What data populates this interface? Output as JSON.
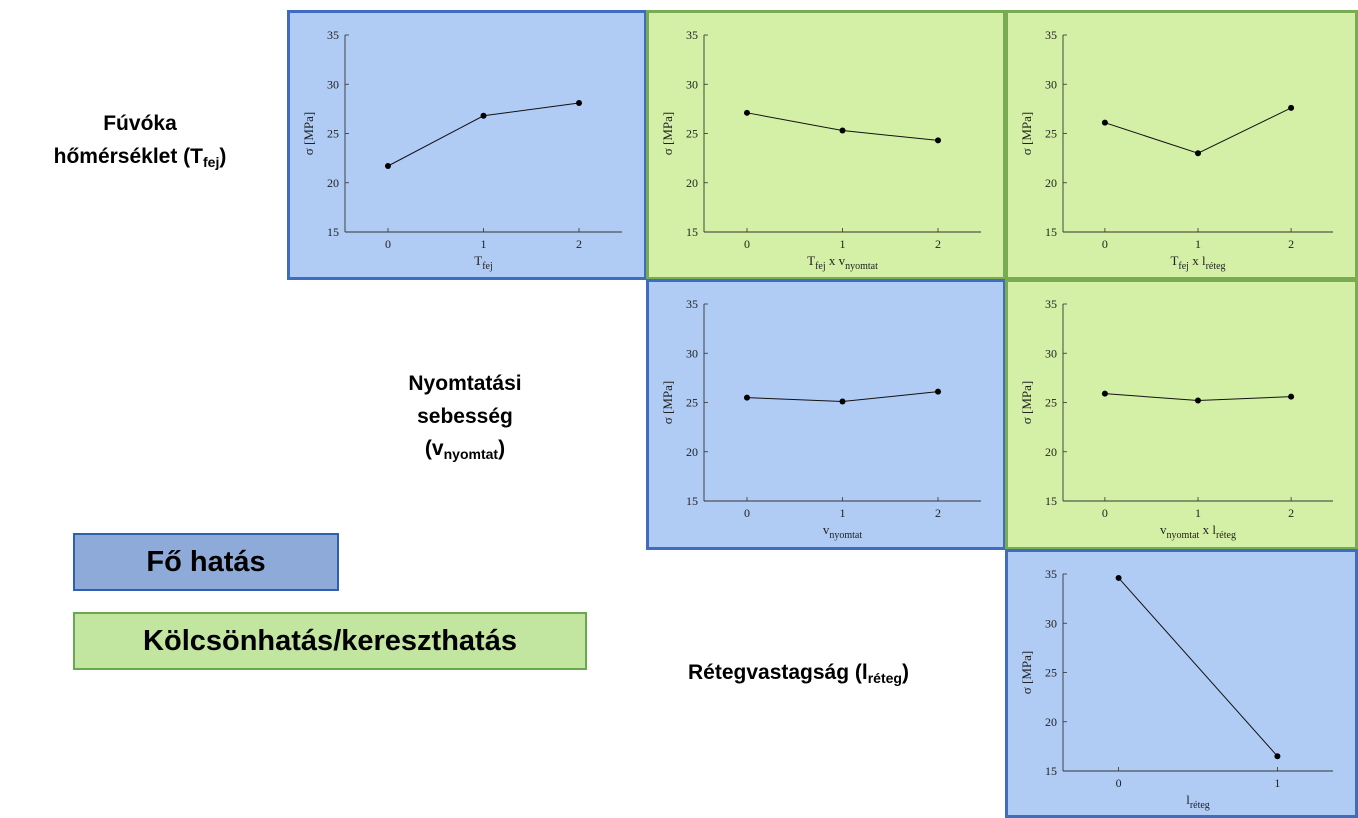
{
  "colors": {
    "main_fill": "#b0ccf5",
    "main_border": "#3e6dc0",
    "inter_fill": "#d3f0a6",
    "inter_border": "#78ab52",
    "legend_main_fill": "#8eaad8",
    "legend_main_border": "#2e5fb0",
    "legend_inter_fill": "#c2e5a0",
    "legend_inter_border": "#6aa84f"
  },
  "row_labels": {
    "fej": {
      "line1": "Fúvóka",
      "line2": "hőmérséklet (T",
      "sub": "fej",
      "close": ")"
    },
    "nyomtat": {
      "line1": "Nyomtatási",
      "line2": "sebesség",
      "line3": "(v",
      "sub": "nyomtat",
      "close": ")"
    },
    "reteg": {
      "text": "Rétegvastagság (l",
      "sub": "réteg",
      "close": ")"
    }
  },
  "legend": {
    "main_label": "Fő hatás",
    "interaction_label": "Kölcsönhatás/kereszthatás"
  },
  "chart_data": [
    {
      "id": "p11",
      "kind": "main",
      "type": "line",
      "ylabel": "σ [MPa]",
      "xlabel": [
        [
          "T",
          ""
        ],
        [
          "fej",
          "sub"
        ]
      ],
      "x": [
        0,
        1,
        2
      ],
      "y": [
        21.7,
        26.8,
        28.1
      ],
      "xlim": [
        -0.45,
        2.45
      ],
      "ylim": [
        15,
        35
      ],
      "yticks": [
        15,
        20,
        25,
        30,
        35
      ],
      "xticks": [
        0,
        1,
        2
      ]
    },
    {
      "id": "p12",
      "kind": "interaction",
      "type": "line",
      "ylabel": "σ [MPa]",
      "xlabel": [
        [
          "T",
          ""
        ],
        [
          "fej",
          "sub"
        ],
        [
          " x v",
          ""
        ],
        [
          "nyomtat",
          "sub"
        ]
      ],
      "x": [
        0,
        1,
        2
      ],
      "y": [
        27.1,
        25.3,
        24.3
      ],
      "xlim": [
        -0.45,
        2.45
      ],
      "ylim": [
        15,
        35
      ],
      "yticks": [
        15,
        20,
        25,
        30,
        35
      ],
      "xticks": [
        0,
        1,
        2
      ]
    },
    {
      "id": "p13",
      "kind": "interaction",
      "type": "line",
      "ylabel": "σ [MPa]",
      "xlabel": [
        [
          "T",
          ""
        ],
        [
          "fej",
          "sub"
        ],
        [
          " x l",
          ""
        ],
        [
          "réteg",
          "sub"
        ]
      ],
      "x": [
        0,
        1,
        2
      ],
      "y": [
        26.1,
        23.0,
        27.6
      ],
      "xlim": [
        -0.45,
        2.45
      ],
      "ylim": [
        15,
        35
      ],
      "yticks": [
        15,
        20,
        25,
        30,
        35
      ],
      "xticks": [
        0,
        1,
        2
      ]
    },
    {
      "id": "p22",
      "kind": "main",
      "type": "line",
      "ylabel": "σ [MPa]",
      "xlabel": [
        [
          "v",
          ""
        ],
        [
          "nyomtat",
          "sub"
        ]
      ],
      "x": [
        0,
        1,
        2
      ],
      "y": [
        25.5,
        25.1,
        26.1
      ],
      "xlim": [
        -0.45,
        2.45
      ],
      "ylim": [
        15,
        35
      ],
      "yticks": [
        15,
        20,
        25,
        30,
        35
      ],
      "xticks": [
        0,
        1,
        2
      ]
    },
    {
      "id": "p23",
      "kind": "interaction",
      "type": "line",
      "ylabel": "σ [MPa]",
      "xlabel": [
        [
          "v",
          ""
        ],
        [
          "nyomtat",
          "sub"
        ],
        [
          " x l",
          ""
        ],
        [
          "réteg",
          "sub"
        ]
      ],
      "x": [
        0,
        1,
        2
      ],
      "y": [
        25.9,
        25.2,
        25.6
      ],
      "xlim": [
        -0.45,
        2.45
      ],
      "ylim": [
        15,
        35
      ],
      "yticks": [
        15,
        20,
        25,
        30,
        35
      ],
      "xticks": [
        0,
        1,
        2
      ]
    },
    {
      "id": "p33",
      "kind": "main",
      "type": "line",
      "ylabel": "σ [MPa]",
      "xlabel": [
        [
          "l",
          ""
        ],
        [
          "réteg",
          "sub"
        ]
      ],
      "x": [
        0,
        1
      ],
      "y": [
        34.6,
        16.5
      ],
      "xlim": [
        -0.35,
        1.35
      ],
      "ylim": [
        15,
        35
      ],
      "yticks": [
        15,
        20,
        25,
        30,
        35
      ],
      "xticks": [
        0,
        1
      ]
    }
  ]
}
